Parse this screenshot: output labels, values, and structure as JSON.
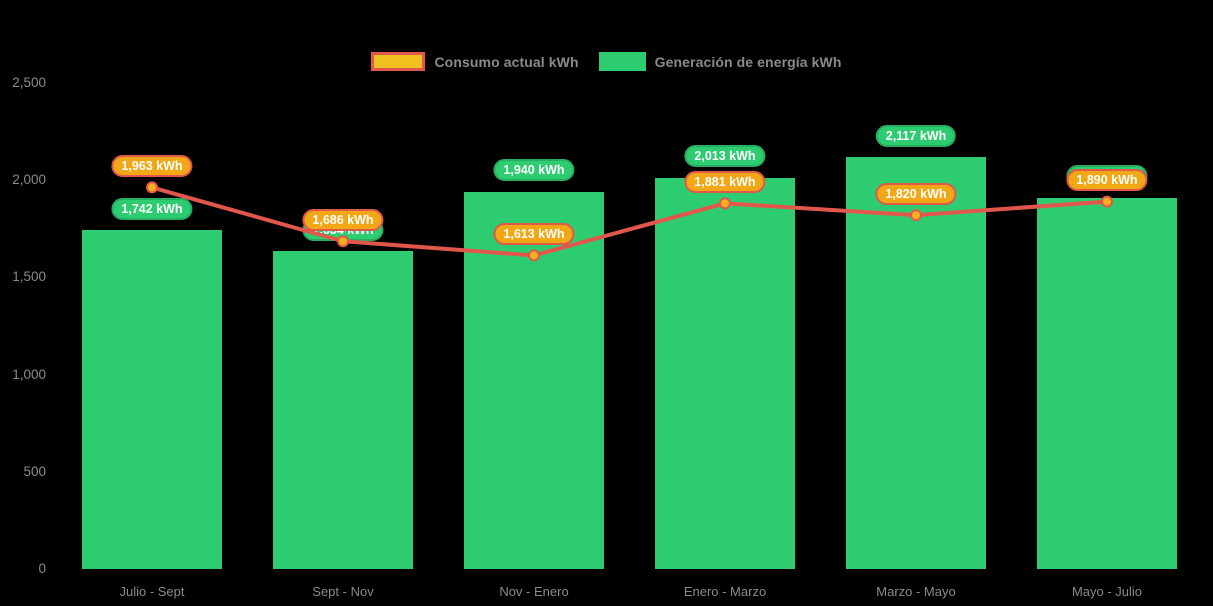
{
  "legend": {
    "items": [
      {
        "label": "Consumo actual kWh",
        "swatch_fill": "#f0c11e",
        "swatch_border": "#e2574c"
      },
      {
        "label": "Generación de energía kWh",
        "swatch_fill": "#2ecc71",
        "swatch_border": ""
      }
    ],
    "position": "top-center"
  },
  "colors": {
    "background": "#000000",
    "bar_green": "#2ecc71",
    "green_label_bg": "#2ecc71",
    "green_label_border": "#27ae60",
    "line_red": "#e2574c",
    "point_fill": "#f5b01c",
    "orange_label_bg": "#f2a716",
    "orange_label_border": "#e2574c",
    "axis_text": "#8a8a8a",
    "label_text": "#ffffff"
  },
  "chart_data": {
    "type": "bar",
    "subtype": "bar-with-line-overlay",
    "title": "",
    "categories": [
      "Julio - Sept",
      "Sept - Nov",
      "Nov - Enero",
      "Enero - Marzo",
      "Marzo - Mayo",
      "Mayo - Julio"
    ],
    "series": [
      {
        "name": "Consumo actual kWh",
        "type": "line",
        "color": "#e2574c",
        "values": [
          1963,
          1686,
          1613,
          1881,
          1820,
          1890
        ],
        "point_labels": [
          "1,963 kWh",
          "1,686 kWh",
          "1,613 kWh",
          "1,881 kWh",
          "1,820 kWh",
          "1,890 kWh"
        ]
      },
      {
        "name": "Generación de energía kWh",
        "type": "bar",
        "color": "#2ecc71",
        "values": [
          1742,
          1634,
          1940,
          2013,
          2117,
          1910
        ],
        "point_labels": [
          "1,742 kWh",
          "1,634 kWh",
          "1,940 kWh",
          "2,013 kWh",
          "2,117 kWh",
          "1,910 kWh"
        ],
        "note": "last point label is occluded behind the consumption label; 1,910 estimated from bar height"
      }
    ],
    "y_axis": {
      "range": [
        0,
        2500
      ],
      "tick_values": [
        0,
        500,
        1000,
        1500,
        2000,
        2500
      ],
      "tick_labels": [
        "0",
        "500",
        "1,000",
        "1,500",
        "2,000",
        "2,500"
      ]
    },
    "x_axis_label": "",
    "y_axis_label": "",
    "grid": false,
    "legend_position": "top"
  }
}
